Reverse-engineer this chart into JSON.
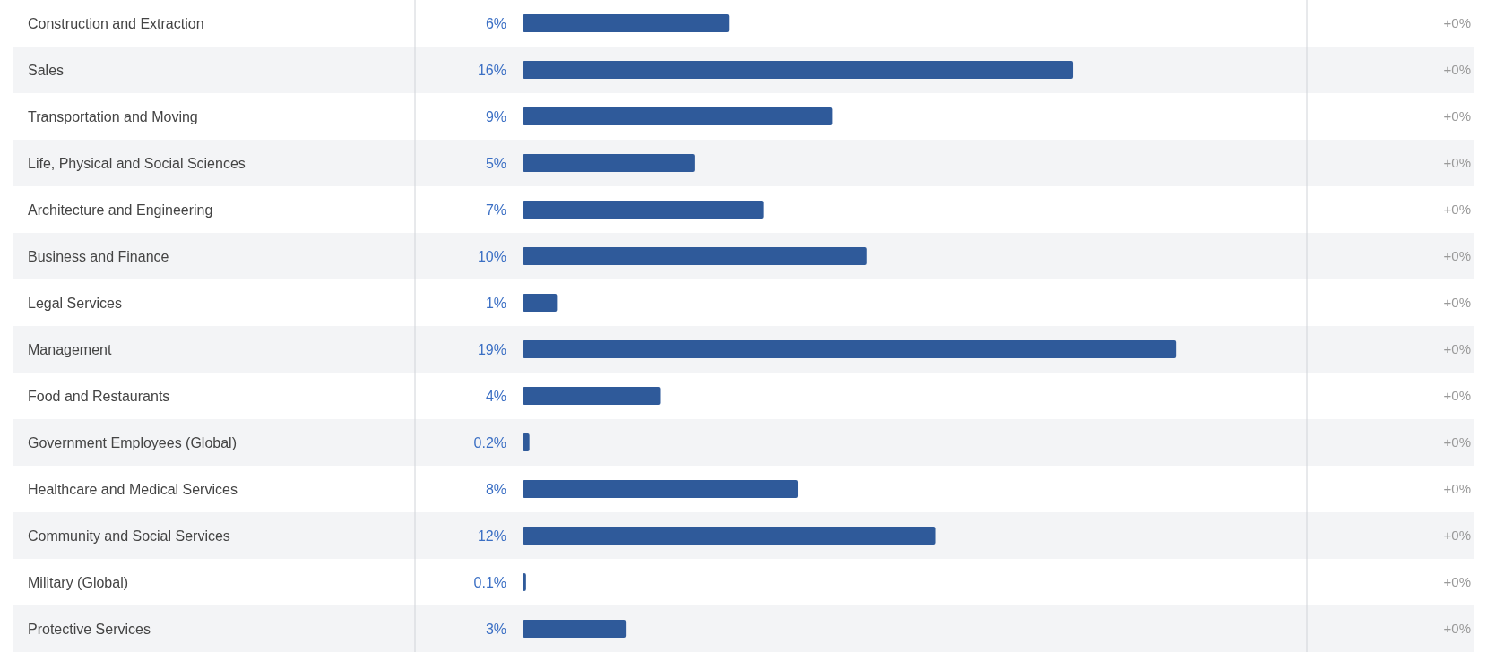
{
  "chart_data": {
    "type": "bar",
    "orientation": "horizontal",
    "categories": [
      "Construction and Extraction",
      "Sales",
      "Transportation and Moving",
      "Life, Physical and Social Sciences",
      "Architecture and Engineering",
      "Business and Finance",
      "Legal Services",
      "Management",
      "Food and Restaurants",
      "Government Employees (Global)",
      "Healthcare and Medical Services",
      "Community and Social Services",
      "Military (Global)",
      "Protective Services"
    ],
    "values": [
      6,
      16,
      9,
      5,
      7,
      10,
      1,
      19,
      4,
      0.2,
      8,
      12,
      0.1,
      3
    ],
    "value_labels": [
      "6%",
      "16%",
      "9%",
      "5%",
      "7%",
      "10%",
      "1%",
      "19%",
      "4%",
      "0.2%",
      "8%",
      "12%",
      "0.1%",
      "3%"
    ],
    "color": "#2f5a9a",
    "annotations": [
      "+0%",
      "+0%",
      "+0%",
      "+0%",
      "+0%",
      "+0%",
      "+0%",
      "+0%",
      "+0%",
      "+0%",
      "+0%",
      "+0%",
      "+0%",
      "+0%"
    ]
  }
}
